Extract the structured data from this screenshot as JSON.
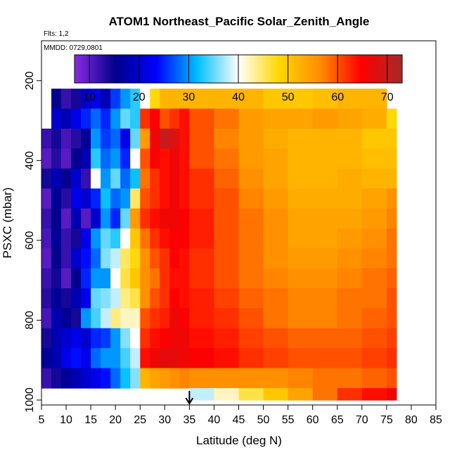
{
  "header": {
    "title": "ATOM1 Northeast_Pacific Solar_Zenith_Angle",
    "flights": "Flts: 1,2",
    "mmdd": "MMDD: 0729,0801"
  },
  "chart_data": {
    "type": "heatmap",
    "title": "ATOM1 Northeast_Pacific Solar_Zenith_Angle",
    "xlabel": "Latitude (deg N)",
    "ylabel": "PSXC (mbar)",
    "xlim": [
      5,
      85
    ],
    "ylim": [
      1000,
      100
    ],
    "x_ticks": [
      5,
      10,
      15,
      20,
      25,
      30,
      35,
      40,
      45,
      50,
      55,
      60,
      65,
      70,
      75,
      80,
      85
    ],
    "y_ticks": [
      200,
      400,
      600,
      800,
      1000
    ],
    "grid": false,
    "colorbar": {
      "range": [
        7,
        73
      ],
      "ticks": [
        10,
        20,
        30,
        40,
        50,
        60,
        70
      ],
      "colors": [
        "#8a2be2",
        "#00008b",
        "#0000ff",
        "#00bfff",
        "#ffffff",
        "#ffd700",
        "#ff8c00",
        "#ff0000",
        "#a52a2a"
      ],
      "placement": "top"
    },
    "marker_latitude": 35,
    "lat_bins": [
      [
        5,
        7
      ],
      [
        7,
        9
      ],
      [
        9,
        11
      ],
      [
        11,
        13
      ],
      [
        13,
        15
      ],
      [
        15,
        17
      ],
      [
        17,
        19
      ],
      [
        19,
        21
      ],
      [
        21,
        23
      ],
      [
        23,
        25
      ],
      [
        25,
        27
      ],
      [
        27,
        29
      ],
      [
        29,
        31
      ],
      [
        31,
        33
      ],
      [
        33,
        35
      ],
      [
        35,
        40
      ],
      [
        40,
        45
      ],
      [
        45,
        50
      ],
      [
        50,
        55
      ],
      [
        55,
        60
      ],
      [
        60,
        65
      ],
      [
        65,
        70
      ],
      [
        70,
        75
      ],
      [
        75,
        77
      ],
      [
        77,
        79
      ]
    ],
    "pressure_bins": [
      [
        220,
        270
      ],
      [
        270,
        320
      ],
      [
        320,
        370
      ],
      [
        370,
        420
      ],
      [
        420,
        470
      ],
      [
        470,
        520
      ],
      [
        520,
        570
      ],
      [
        570,
        620
      ],
      [
        620,
        670
      ],
      [
        670,
        720
      ],
      [
        720,
        770
      ],
      [
        770,
        820
      ],
      [
        820,
        870
      ],
      [
        870,
        920
      ],
      [
        920,
        970
      ],
      [
        970,
        1000
      ]
    ],
    "values": [
      [
        null,
        15,
        12,
        14,
        20,
        22,
        18,
        26,
        30,
        33,
        40,
        48,
        52,
        52,
        52,
        52,
        52,
        52,
        50,
        50,
        51,
        52,
        52,
        null,
        null
      ],
      [
        null,
        20,
        18,
        22,
        25,
        28,
        25,
        30,
        35,
        33,
        62,
        65,
        60,
        62,
        64,
        60,
        58,
        55,
        54,
        54,
        55,
        54,
        53,
        48,
        null
      ],
      [
        12,
        14,
        11,
        13,
        16,
        30,
        26,
        28,
        22,
        35,
        55,
        66,
        70,
        68,
        64,
        60,
        57,
        55,
        53,
        52,
        52,
        52,
        50,
        50,
        null
      ],
      [
        10,
        13,
        10,
        15,
        18,
        33,
        28,
        30,
        25,
        40,
        60,
        65,
        64,
        66,
        64,
        60,
        58,
        55,
        54,
        52,
        52,
        52,
        51,
        51,
        null
      ],
      [
        14,
        18,
        15,
        20,
        12,
        40,
        30,
        35,
        28,
        32,
        58,
        62,
        64,
        66,
        64,
        62,
        59,
        56,
        54,
        52,
        52,
        53,
        52,
        52,
        null
      ],
      [
        10,
        16,
        13,
        22,
        20,
        25,
        32,
        28,
        30,
        45,
        60,
        62,
        64,
        66,
        64,
        62,
        60,
        57,
        55,
        53,
        53,
        53,
        54,
        56,
        null
      ],
      [
        12,
        15,
        10,
        18,
        10,
        20,
        30,
        25,
        35,
        55,
        62,
        64,
        66,
        66,
        65,
        63,
        60,
        58,
        56,
        54,
        54,
        54,
        55,
        57,
        null
      ],
      [
        11,
        16,
        12,
        14,
        22,
        30,
        35,
        33,
        40,
        50,
        58,
        62,
        64,
        65,
        65,
        63,
        60,
        58,
        56,
        54,
        54,
        55,
        56,
        58,
        null
      ],
      [
        10,
        15,
        12,
        20,
        24,
        28,
        36,
        38,
        45,
        48,
        56,
        60,
        62,
        65,
        64,
        62,
        60,
        58,
        56,
        55,
        55,
        56,
        57,
        58,
        null
      ],
      [
        12,
        14,
        10,
        15,
        25,
        30,
        30,
        40,
        46,
        50,
        56,
        58,
        62,
        64,
        64,
        62,
        60,
        58,
        57,
        56,
        56,
        57,
        58,
        59,
        null
      ],
      [
        13,
        16,
        14,
        18,
        22,
        35,
        36,
        38,
        44,
        46,
        56,
        60,
        62,
        65,
        64,
        63,
        61,
        59,
        58,
        57,
        57,
        58,
        58,
        60,
        null
      ],
      [
        11,
        18,
        16,
        14,
        30,
        34,
        38,
        44,
        42,
        42,
        60,
        62,
        63,
        66,
        65,
        63,
        62,
        60,
        58,
        57,
        57,
        58,
        59,
        60,
        null
      ],
      [
        14,
        18,
        20,
        22,
        20,
        25,
        26,
        30,
        36,
        40,
        62,
        64,
        65,
        66,
        66,
        64,
        63,
        61,
        60,
        59,
        59,
        59,
        60,
        61,
        null
      ],
      [
        16,
        18,
        22,
        24,
        22,
        28,
        30,
        30,
        34,
        38,
        64,
        66,
        67,
        67,
        66,
        65,
        64,
        62,
        61,
        60,
        60,
        60,
        61,
        62,
        null
      ],
      [
        12,
        14,
        16,
        18,
        20,
        22,
        24,
        28,
        32,
        36,
        52,
        54,
        55,
        56,
        57,
        56,
        56,
        56,
        56,
        57,
        58,
        58,
        59,
        60,
        null
      ],
      [
        null,
        null,
        null,
        null,
        null,
        null,
        null,
        null,
        null,
        null,
        null,
        null,
        null,
        null,
        null,
        38,
        42,
        46,
        50,
        54,
        58,
        62,
        64,
        66,
        null
      ]
    ]
  }
}
